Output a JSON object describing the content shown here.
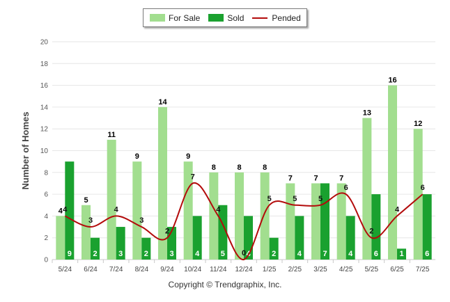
{
  "chart_data": {
    "type": "bar",
    "categories": [
      "5/24",
      "6/24",
      "7/24",
      "8/24",
      "9/24",
      "10/24",
      "11/24",
      "12/24",
      "1/25",
      "2/25",
      "3/25",
      "4/25",
      "5/25",
      "6/25",
      "7/25"
    ],
    "series": [
      {
        "name": "For Sale",
        "type": "bar",
        "color": "#a2de8f",
        "values": [
          4,
          5,
          11,
          9,
          14,
          9,
          8,
          8,
          8,
          7,
          7,
          7,
          13,
          16,
          12
        ]
      },
      {
        "name": "Sold",
        "type": "bar",
        "color": "#1aa12f",
        "values": [
          9,
          2,
          3,
          2,
          3,
          4,
          5,
          4,
          2,
          4,
          7,
          4,
          6,
          1,
          6
        ]
      },
      {
        "name": "Pended",
        "type": "line",
        "color": "#b30b0b",
        "values": [
          4,
          3,
          4,
          3,
          2,
          7,
          4,
          0,
          5,
          5,
          5,
          6,
          2,
          4,
          6
        ]
      }
    ],
    "ylabel": "Number of Homes",
    "xlabel": "",
    "ylim": [
      0,
      20
    ],
    "yticks": [
      0,
      2,
      4,
      6,
      8,
      10,
      12,
      14,
      16,
      18,
      20
    ],
    "grid": true,
    "legend_position": "top-center"
  },
  "footer": {
    "copyright": "Copyright © Trendgraphix, Inc."
  }
}
